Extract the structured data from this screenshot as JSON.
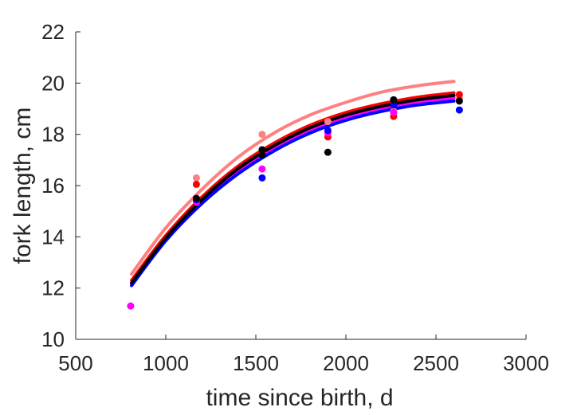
{
  "chart_data": {
    "type": "scatter",
    "xlabel": "time since birth, d",
    "ylabel": "fork length, cm",
    "xlim": [
      500,
      3000
    ],
    "ylim": [
      10,
      22
    ],
    "xticks": [
      500,
      1000,
      1500,
      2000,
      2500,
      3000
    ],
    "yticks": [
      10,
      12,
      14,
      16,
      18,
      20,
      22
    ],
    "grid": false,
    "legend": "none",
    "series": [
      {
        "color": "#ff8080",
        "points": [
          [
            1170,
            16.3
          ],
          [
            1535,
            18.0
          ],
          [
            1900,
            18.5
          ],
          [
            2265,
            18.9
          ],
          [
            2630,
            19.4
          ]
        ],
        "curve": [
          [
            810,
            12.55
          ],
          [
            1000,
            14.35
          ],
          [
            1200,
            15.85
          ],
          [
            1400,
            17.1
          ],
          [
            1600,
            18.05
          ],
          [
            1800,
            18.75
          ],
          [
            2000,
            19.25
          ],
          [
            2200,
            19.65
          ],
          [
            2400,
            19.9
          ],
          [
            2600,
            20.07
          ]
        ]
      },
      {
        "color": "#ff0000",
        "points": [
          [
            1170,
            16.05
          ],
          [
            1535,
            17.3
          ],
          [
            1900,
            17.9
          ],
          [
            2265,
            18.7
          ],
          [
            2630,
            19.55
          ]
        ],
        "curve": [
          [
            810,
            12.3
          ],
          [
            1000,
            14.05
          ],
          [
            1200,
            15.55
          ],
          [
            1400,
            16.75
          ],
          [
            1600,
            17.65
          ],
          [
            1800,
            18.35
          ],
          [
            2000,
            18.85
          ],
          [
            2200,
            19.2
          ],
          [
            2400,
            19.45
          ],
          [
            2600,
            19.62
          ]
        ]
      },
      {
        "color": "#ff00ff",
        "points": [
          [
            805,
            11.3
          ],
          [
            1170,
            15.35
          ],
          [
            1535,
            16.65
          ],
          [
            1900,
            18.05
          ],
          [
            2265,
            18.85
          ]
        ],
        "curve": [
          [
            810,
            12.15
          ],
          [
            1000,
            13.9
          ],
          [
            1200,
            15.35
          ],
          [
            1400,
            16.55
          ],
          [
            1600,
            17.45
          ],
          [
            1800,
            18.15
          ],
          [
            2000,
            18.65
          ],
          [
            2200,
            19.0
          ],
          [
            2400,
            19.25
          ],
          [
            2600,
            19.42
          ]
        ]
      },
      {
        "color": "#0000ff",
        "points": [
          [
            1170,
            15.45
          ],
          [
            1535,
            16.3
          ],
          [
            1900,
            18.15
          ],
          [
            2265,
            19.15
          ],
          [
            2630,
            18.95
          ]
        ],
        "curve": [
          [
            810,
            12.1
          ],
          [
            1000,
            13.85
          ],
          [
            1200,
            15.3
          ],
          [
            1400,
            16.45
          ],
          [
            1600,
            17.35
          ],
          [
            1800,
            18.05
          ],
          [
            2000,
            18.55
          ],
          [
            2200,
            18.9
          ],
          [
            2400,
            19.15
          ],
          [
            2600,
            19.3
          ]
        ]
      },
      {
        "color": "#000000",
        "points": [
          [
            1170,
            15.5
          ],
          [
            1535,
            17.2
          ],
          [
            1535,
            17.4
          ],
          [
            1900,
            17.3
          ],
          [
            2265,
            19.35
          ],
          [
            2630,
            19.3
          ]
        ],
        "curve": [
          [
            810,
            12.2
          ],
          [
            1000,
            13.95
          ],
          [
            1200,
            15.45
          ],
          [
            1400,
            16.65
          ],
          [
            1600,
            17.55
          ],
          [
            1800,
            18.25
          ],
          [
            2000,
            18.75
          ],
          [
            2200,
            19.1
          ],
          [
            2400,
            19.35
          ],
          [
            2600,
            19.52
          ]
        ]
      }
    ]
  }
}
